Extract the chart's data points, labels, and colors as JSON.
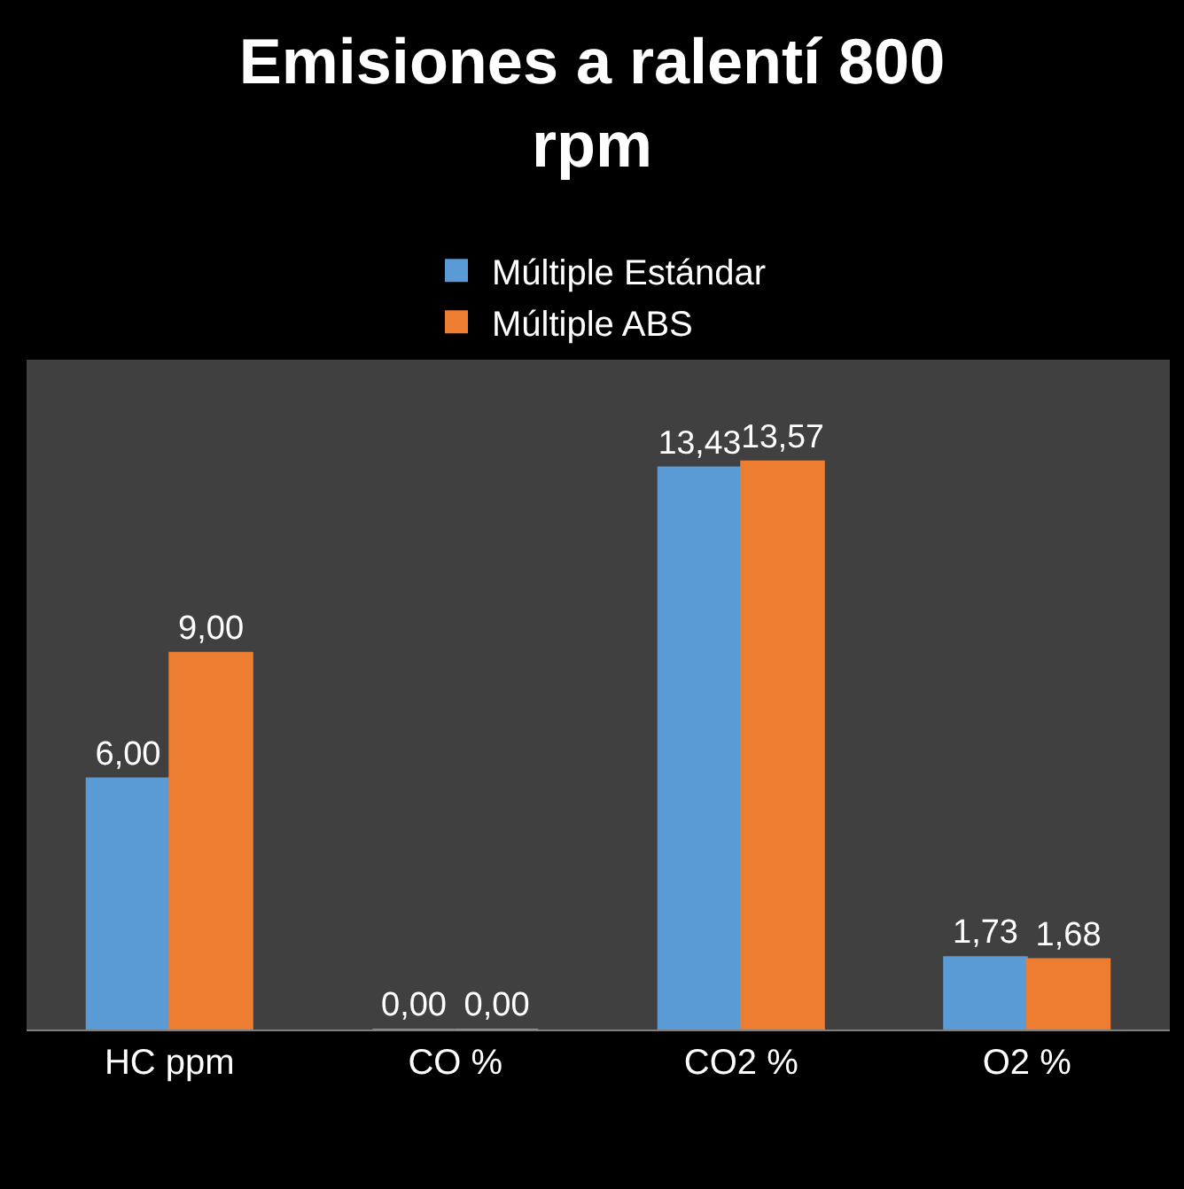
{
  "chart_data": {
    "type": "bar",
    "title": "Emisiones a ralentí 800 rpm",
    "categories": [
      "HC ppm",
      "CO %",
      "CO2 %",
      "O2 %"
    ],
    "series": [
      {
        "name": "Múltiple Estándar",
        "color": "#5b9bd5",
        "values": [
          6.0,
          0.0,
          13.43,
          1.73
        ],
        "value_labels": [
          "6,00",
          "0,00",
          "13,43",
          "1,73"
        ]
      },
      {
        "name": "Múltiple ABS",
        "color": "#ed7d31",
        "values": [
          9.0,
          0.0,
          13.57,
          1.68
        ],
        "value_labels": [
          "9,00",
          "0,00",
          "13,57",
          "1,68"
        ]
      }
    ],
    "ylim": [
      0,
      16
    ],
    "tick_labels": "x",
    "grid": false,
    "legend": "top"
  }
}
